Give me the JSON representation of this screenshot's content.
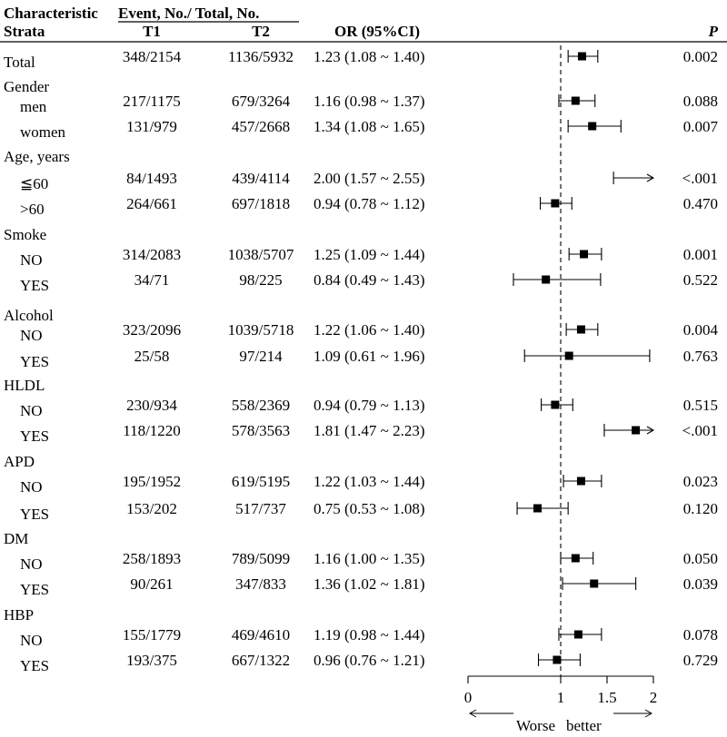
{
  "header": {
    "characteristic": "Characteristic",
    "strata": "Strata",
    "event_group": "Event, No./ Total, No.",
    "t1": "T1",
    "t2": "T2",
    "or": "OR (95%CI)",
    "p": "P"
  },
  "chart_data": {
    "type": "forest",
    "title": "",
    "axis": {
      "ticks": [
        0,
        1,
        1.5,
        2
      ],
      "tick_labels": [
        "0",
        "1",
        "1.5",
        "2"
      ],
      "xlim": [
        0,
        2
      ],
      "reference_line": 1,
      "left_label": "Worse",
      "right_label": "better"
    },
    "rows": [
      {
        "label": "Total",
        "level": 0,
        "t1": "348/2154",
        "t2": "1136/5932",
        "or_text": "1.23 (1.08 ~ 1.40)",
        "p": "0.002",
        "or": 1.23,
        "lo": 1.08,
        "hi": 1.4,
        "arrow": false
      },
      {
        "label": "Gender",
        "level": 0,
        "header": true
      },
      {
        "label": "men",
        "level": 1,
        "t1": "217/1175",
        "t2": "679/3264",
        "or_text": "1.16 (0.98 ~ 1.37)",
        "p": "0.088",
        "or": 1.16,
        "lo": 0.98,
        "hi": 1.37,
        "arrow": false
      },
      {
        "label": "women",
        "level": 1,
        "t1": "131/979",
        "t2": "457/2668",
        "or_text": "1.34 (1.08 ~ 1.65)",
        "p": "0.007",
        "or": 1.34,
        "lo": 1.08,
        "hi": 1.65,
        "arrow": false
      },
      {
        "label": "Age, years",
        "level": 0,
        "header": true
      },
      {
        "label": "≦60",
        "level": 1,
        "t1": "84/1493",
        "t2": "439/4114",
        "or_text": "2.00 (1.57 ~ 2.55)",
        "p": "<.001",
        "or": 2.0,
        "lo": 1.57,
        "hi": 2.55,
        "arrow": true,
        "show_point": false
      },
      {
        "label": ">60",
        "level": 1,
        "t1": "264/661",
        "t2": "697/1818",
        "or_text": "0.94 (0.78 ~ 1.12)",
        "p": "0.470",
        "or": 0.94,
        "lo": 0.78,
        "hi": 1.12,
        "arrow": false
      },
      {
        "label": "Smoke",
        "level": 0,
        "header": true
      },
      {
        "label": "NO",
        "level": 1,
        "t1": "314/2083",
        "t2": "1038/5707",
        "or_text": "1.25 (1.09 ~ 1.44)",
        "p": "0.001",
        "or": 1.25,
        "lo": 1.09,
        "hi": 1.44,
        "arrow": false
      },
      {
        "label": "YES",
        "level": 1,
        "t1": "34/71",
        "t2": "98/225",
        "or_text": "0.84 (0.49 ~ 1.43)",
        "p": "0.522",
        "or": 0.84,
        "lo": 0.49,
        "hi": 1.43,
        "arrow": false
      },
      {
        "label": "Alcohol",
        "level": 0,
        "header": true
      },
      {
        "label": "NO",
        "level": 1,
        "t1": "323/2096",
        "t2": "1039/5718",
        "or_text": "1.22 (1.06 ~ 1.40)",
        "p": "0.004",
        "or": 1.22,
        "lo": 1.06,
        "hi": 1.4,
        "arrow": false
      },
      {
        "label": "YES",
        "level": 1,
        "t1": "25/58",
        "t2": "97/214",
        "or_text": "1.09 (0.61 ~ 1.96)",
        "p": "0.763",
        "or": 1.09,
        "lo": 0.61,
        "hi": 1.96,
        "arrow": false
      },
      {
        "label": "HLDL",
        "level": 0,
        "header": true
      },
      {
        "label": "NO",
        "level": 1,
        "t1": "230/934",
        "t2": "558/2369",
        "or_text": "0.94 (0.79 ~ 1.13)",
        "p": "0.515",
        "or": 0.94,
        "lo": 0.79,
        "hi": 1.13,
        "arrow": false
      },
      {
        "label": "YES",
        "level": 1,
        "t1": "118/1220",
        "t2": "578/3563",
        "or_text": "1.81 (1.47 ~ 2.23)",
        "p": "<.001",
        "or": 1.81,
        "lo": 1.47,
        "hi": 2.23,
        "arrow": true
      },
      {
        "label": "APD",
        "level": 0,
        "header": true
      },
      {
        "label": "NO",
        "level": 1,
        "t1": "195/1952",
        "t2": "619/5195",
        "or_text": "1.22 (1.03 ~ 1.44)",
        "p": "0.023",
        "or": 1.22,
        "lo": 1.03,
        "hi": 1.44,
        "arrow": false
      },
      {
        "label": "YES",
        "level": 1,
        "t1": "153/202",
        "t2": "517/737",
        "or_text": "0.75 (0.53 ~ 1.08)",
        "p": "0.120",
        "or": 0.75,
        "lo": 0.53,
        "hi": 1.08,
        "arrow": false
      },
      {
        "label": "DM",
        "level": 0,
        "header": true
      },
      {
        "label": "NO",
        "level": 1,
        "t1": "258/1893",
        "t2": "789/5099",
        "or_text": "1.16 (1.00 ~ 1.35)",
        "p": "0.050",
        "or": 1.16,
        "lo": 1.0,
        "hi": 1.35,
        "arrow": false
      },
      {
        "label": "YES",
        "level": 1,
        "t1": "90/261",
        "t2": "347/833",
        "or_text": "1.36 (1.02 ~ 1.81)",
        "p": "0.039",
        "or": 1.36,
        "lo": 1.02,
        "hi": 1.81,
        "arrow": false
      },
      {
        "label": "HBP",
        "level": 0,
        "header": true
      },
      {
        "label": "NO",
        "level": 1,
        "t1": "155/1779",
        "t2": "469/4610",
        "or_text": "1.19 (0.98 ~ 1.44)",
        "p": "0.078",
        "or": 1.19,
        "lo": 0.98,
        "hi": 1.44,
        "arrow": false
      },
      {
        "label": "YES",
        "level": 1,
        "t1": "193/375",
        "t2": "667/1322",
        "or_text": "0.96 (0.76 ~ 1.21)",
        "p": "0.729",
        "or": 0.96,
        "lo": 0.76,
        "hi": 1.21,
        "arrow": false
      }
    ]
  }
}
